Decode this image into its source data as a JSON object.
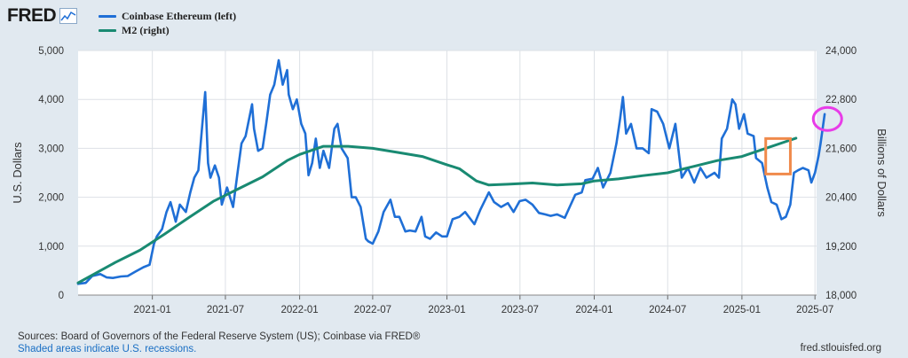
{
  "header": {
    "logo_text": "FRED",
    "logo_icon": "line-chart-icon"
  },
  "legend": [
    {
      "label": "Coinbase Ethereum (left)",
      "color": "#1f6fd6"
    },
    {
      "label": "M2 (right)",
      "color": "#198a72"
    }
  ],
  "footer": {
    "sources": "Sources: Board of Governors of the Federal Reserve System (US); Coinbase via FRED®",
    "recessions": "Shaded areas indicate U.S. recessions.",
    "credit": "fred.stlouisfed.org"
  },
  "chart_data": {
    "type": "line",
    "x_range": [
      "2020-07-01",
      "2025-07-05"
    ],
    "xticks": [
      "2021-01",
      "2021-07",
      "2022-01",
      "2022-07",
      "2023-01",
      "2023-07",
      "2024-01",
      "2024-07",
      "2025-01",
      "2025-07"
    ],
    "ylabel_left": "U.S. Dollars",
    "ylim_left": [
      0,
      5000
    ],
    "yticks_left": [
      "0",
      "1,000",
      "2,000",
      "3,000",
      "4,000",
      "5,000"
    ],
    "ylabel_right": "Billions of Dollars",
    "ylim_right": [
      18000,
      24000
    ],
    "yticks_right": [
      "18,000",
      "19,200",
      "20,400",
      "21,600",
      "22,800",
      "24,000"
    ],
    "grid": true,
    "series": [
      {
        "name": "Coinbase Ethereum (left)",
        "axis": "left",
        "color": "#1f6fd6",
        "points": [
          [
            "2020-07-01",
            230
          ],
          [
            "2020-07-20",
            250
          ],
          [
            "2020-08-05",
            390
          ],
          [
            "2020-08-25",
            430
          ],
          [
            "2020-09-10",
            360
          ],
          [
            "2020-09-25",
            350
          ],
          [
            "2020-10-15",
            380
          ],
          [
            "2020-11-01",
            390
          ],
          [
            "2020-11-20",
            480
          ],
          [
            "2020-12-10",
            570
          ],
          [
            "2020-12-25",
            620
          ],
          [
            "2021-01-05",
            1050
          ],
          [
            "2021-01-12",
            1200
          ],
          [
            "2021-01-25",
            1350
          ],
          [
            "2021-02-05",
            1700
          ],
          [
            "2021-02-15",
            1900
          ],
          [
            "2021-02-28",
            1500
          ],
          [
            "2021-03-10",
            1850
          ],
          [
            "2021-03-25",
            1700
          ],
          [
            "2021-04-05",
            2100
          ],
          [
            "2021-04-15",
            2400
          ],
          [
            "2021-04-25",
            2550
          ],
          [
            "2021-05-05",
            3500
          ],
          [
            "2021-05-12",
            4150
          ],
          [
            "2021-05-19",
            2700
          ],
          [
            "2021-05-25",
            2400
          ],
          [
            "2021-06-05",
            2650
          ],
          [
            "2021-06-15",
            2400
          ],
          [
            "2021-06-22",
            1850
          ],
          [
            "2021-07-05",
            2200
          ],
          [
            "2021-07-20",
            1800
          ],
          [
            "2021-08-01",
            2550
          ],
          [
            "2021-08-10",
            3100
          ],
          [
            "2021-08-20",
            3250
          ],
          [
            "2021-09-05",
            3900
          ],
          [
            "2021-09-10",
            3400
          ],
          [
            "2021-09-20",
            2950
          ],
          [
            "2021-10-01",
            3000
          ],
          [
            "2021-10-10",
            3500
          ],
          [
            "2021-10-20",
            4100
          ],
          [
            "2021-10-30",
            4300
          ],
          [
            "2021-11-10",
            4800
          ],
          [
            "2021-11-20",
            4300
          ],
          [
            "2021-12-01",
            4600
          ],
          [
            "2021-12-05",
            4100
          ],
          [
            "2021-12-15",
            3800
          ],
          [
            "2021-12-25",
            4000
          ],
          [
            "2022-01-05",
            3500
          ],
          [
            "2022-01-15",
            3300
          ],
          [
            "2022-01-23",
            2450
          ],
          [
            "2022-02-01",
            2700
          ],
          [
            "2022-02-10",
            3200
          ],
          [
            "2022-02-20",
            2600
          ],
          [
            "2022-03-01",
            2950
          ],
          [
            "2022-03-15",
            2600
          ],
          [
            "2022-03-28",
            3400
          ],
          [
            "2022-04-05",
            3500
          ],
          [
            "2022-04-15",
            3000
          ],
          [
            "2022-04-30",
            2800
          ],
          [
            "2022-05-10",
            2000
          ],
          [
            "2022-05-20",
            2000
          ],
          [
            "2022-06-01",
            1800
          ],
          [
            "2022-06-14",
            1150
          ],
          [
            "2022-06-20",
            1100
          ],
          [
            "2022-07-01",
            1050
          ],
          [
            "2022-07-15",
            1300
          ],
          [
            "2022-07-28",
            1700
          ],
          [
            "2022-08-14",
            1950
          ],
          [
            "2022-08-25",
            1600
          ],
          [
            "2022-09-05",
            1600
          ],
          [
            "2022-09-20",
            1300
          ],
          [
            "2022-10-01",
            1320
          ],
          [
            "2022-10-15",
            1300
          ],
          [
            "2022-10-30",
            1600
          ],
          [
            "2022-11-08",
            1200
          ],
          [
            "2022-11-20",
            1150
          ],
          [
            "2022-12-05",
            1280
          ],
          [
            "2022-12-20",
            1200
          ],
          [
            "2023-01-01",
            1200
          ],
          [
            "2023-01-15",
            1550
          ],
          [
            "2023-02-01",
            1600
          ],
          [
            "2023-02-15",
            1700
          ],
          [
            "2023-03-10",
            1450
          ],
          [
            "2023-03-25",
            1750
          ],
          [
            "2023-04-15",
            2100
          ],
          [
            "2023-04-28",
            1900
          ],
          [
            "2023-05-15",
            1800
          ],
          [
            "2023-06-01",
            1880
          ],
          [
            "2023-06-15",
            1700
          ],
          [
            "2023-06-30",
            1920
          ],
          [
            "2023-07-15",
            1950
          ],
          [
            "2023-08-01",
            1850
          ],
          [
            "2023-08-17",
            1680
          ],
          [
            "2023-09-01",
            1650
          ],
          [
            "2023-09-15",
            1620
          ],
          [
            "2023-10-01",
            1650
          ],
          [
            "2023-10-20",
            1580
          ],
          [
            "2023-11-01",
            1800
          ],
          [
            "2023-11-15",
            2050
          ],
          [
            "2023-12-01",
            2100
          ],
          [
            "2023-12-10",
            2350
          ],
          [
            "2023-12-28",
            2380
          ],
          [
            "2024-01-10",
            2600
          ],
          [
            "2024-01-23",
            2200
          ],
          [
            "2024-02-10",
            2500
          ],
          [
            "2024-02-25",
            3100
          ],
          [
            "2024-03-05",
            3600
          ],
          [
            "2024-03-12",
            4050
          ],
          [
            "2024-03-20",
            3300
          ],
          [
            "2024-04-01",
            3500
          ],
          [
            "2024-04-15",
            3000
          ],
          [
            "2024-04-30",
            3000
          ],
          [
            "2024-05-15",
            2900
          ],
          [
            "2024-05-22",
            3800
          ],
          [
            "2024-06-05",
            3750
          ],
          [
            "2024-06-20",
            3500
          ],
          [
            "2024-07-05",
            3000
          ],
          [
            "2024-07-20",
            3500
          ],
          [
            "2024-08-05",
            2400
          ],
          [
            "2024-08-20",
            2600
          ],
          [
            "2024-09-05",
            2300
          ],
          [
            "2024-09-20",
            2600
          ],
          [
            "2024-10-05",
            2400
          ],
          [
            "2024-10-25",
            2500
          ],
          [
            "2024-11-05",
            2400
          ],
          [
            "2024-11-12",
            3200
          ],
          [
            "2024-11-25",
            3400
          ],
          [
            "2024-12-08",
            4000
          ],
          [
            "2024-12-16",
            3900
          ],
          [
            "2024-12-25",
            3400
          ],
          [
            "2025-01-06",
            3700
          ],
          [
            "2025-01-15",
            3300
          ],
          [
            "2025-01-30",
            3250
          ],
          [
            "2025-02-05",
            2800
          ],
          [
            "2025-02-20",
            2700
          ],
          [
            "2025-03-05",
            2200
          ],
          [
            "2025-03-15",
            1900
          ],
          [
            "2025-03-28",
            1850
          ],
          [
            "2025-04-09",
            1550
          ],
          [
            "2025-04-20",
            1600
          ],
          [
            "2025-05-01",
            1850
          ],
          [
            "2025-05-10",
            2500
          ],
          [
            "2025-05-20",
            2550
          ],
          [
            "2025-06-01",
            2600
          ],
          [
            "2025-06-15",
            2550
          ],
          [
            "2025-06-22",
            2300
          ],
          [
            "2025-07-01",
            2500
          ],
          [
            "2025-07-10",
            2850
          ],
          [
            "2025-07-15",
            3100
          ],
          [
            "2025-07-25",
            3700
          ]
        ]
      },
      {
        "name": "M2 (right)",
        "axis": "right",
        "color": "#198a72",
        "points": [
          [
            "2020-07-01",
            18300
          ],
          [
            "2020-10-01",
            18800
          ],
          [
            "2020-12-01",
            19100
          ],
          [
            "2021-02-01",
            19500
          ],
          [
            "2021-04-01",
            19900
          ],
          [
            "2021-06-01",
            20300
          ],
          [
            "2021-08-01",
            20600
          ],
          [
            "2021-10-01",
            20900
          ],
          [
            "2021-12-01",
            21300
          ],
          [
            "2022-01-01",
            21450
          ],
          [
            "2022-03-01",
            21650
          ],
          [
            "2022-05-01",
            21650
          ],
          [
            "2022-07-01",
            21600
          ],
          [
            "2022-09-01",
            21500
          ],
          [
            "2022-11-01",
            21400
          ],
          [
            "2022-12-31",
            21200
          ],
          [
            "2023-02-01",
            21100
          ],
          [
            "2023-03-15",
            20800
          ],
          [
            "2023-04-15",
            20700
          ],
          [
            "2023-06-01",
            20720
          ],
          [
            "2023-08-01",
            20750
          ],
          [
            "2023-10-01",
            20700
          ],
          [
            "2023-12-01",
            20730
          ],
          [
            "2024-01-01",
            20800
          ],
          [
            "2024-03-01",
            20850
          ],
          [
            "2024-05-01",
            20930
          ],
          [
            "2024-07-01",
            21000
          ],
          [
            "2024-09-01",
            21150
          ],
          [
            "2024-11-01",
            21300
          ],
          [
            "2025-01-01",
            21400
          ],
          [
            "2025-03-01",
            21600
          ],
          [
            "2025-04-15",
            21750
          ],
          [
            "2025-05-15",
            21850
          ]
        ]
      }
    ],
    "annotations": [
      {
        "shape": "rectangle",
        "color": "#f08a4b",
        "x_range": [
          "2025-03-01",
          "2025-05-01"
        ],
        "y_right_range": [
          20970,
          21840
        ]
      },
      {
        "shape": "ellipse",
        "color": "#e83ce8",
        "center_x": "2025-08-01",
        "center_y_left": 3600
      }
    ]
  }
}
